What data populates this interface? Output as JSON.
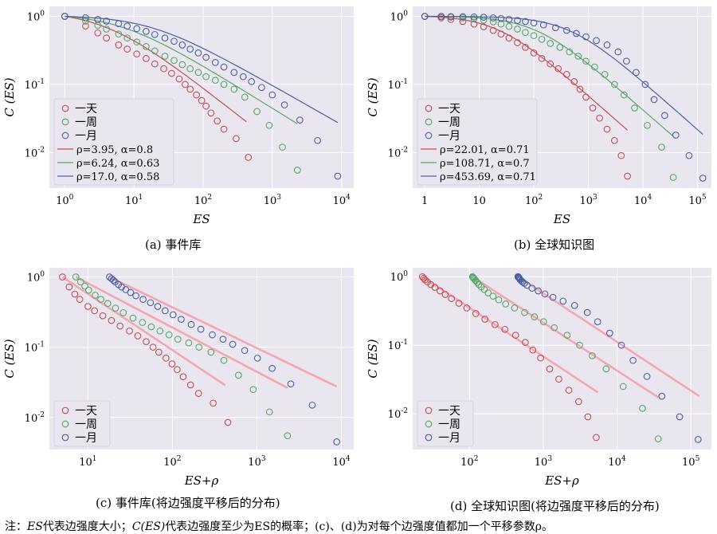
{
  "note": {
    "p1": "注：",
    "p2": "ES",
    "p3": "代表边强度大小；",
    "p4": "C(ES)",
    "p5": "代表边强度至少为ES的概率；(c)、(d)为对每个边强度值都加一个平移参数ρ。"
  },
  "colors": {
    "day": "#c44e52",
    "week": "#55a868",
    "month": "#4c5fa0",
    "shift_fit": "#f4a7b0",
    "panel_bg": "#eae6f0",
    "grid": "#ffffff"
  },
  "chart_data": [
    {
      "type": "scatter",
      "caption": "(a) 事件库",
      "xlabel": "ES",
      "ylabel": "C (ES)",
      "xscale": "log",
      "yscale": "log",
      "xlim": [
        0.6,
        15000
      ],
      "ylim": [
        0.003,
        1.4
      ],
      "x_ticks": [
        {
          "v": 1,
          "label": "10",
          "exp": "0"
        },
        {
          "v": 10,
          "label": "10",
          "exp": "1"
        },
        {
          "v": 100,
          "label": "10",
          "exp": "2"
        },
        {
          "v": 1000,
          "label": "10",
          "exp": "3"
        },
        {
          "v": 10000,
          "label": "10",
          "exp": "4"
        }
      ],
      "y_ticks": [
        {
          "v": 1,
          "label": "10",
          "exp": "0"
        },
        {
          "v": 0.1,
          "label": "10",
          "exp": "-1"
        },
        {
          "v": 0.01,
          "label": "10",
          "exp": "-2"
        }
      ],
      "grid": true,
      "legend_position": "bottom-left",
      "series": [
        {
          "name": "一天",
          "color_key": "day",
          "x": [
            1,
            2,
            3,
            4,
            6,
            8,
            11,
            15,
            20,
            27,
            35,
            45,
            55,
            65,
            80,
            95,
            110,
            130,
            160,
            200,
            300,
            450
          ],
          "y": [
            1.0,
            0.72,
            0.57,
            0.48,
            0.38,
            0.33,
            0.28,
            0.24,
            0.2,
            0.17,
            0.145,
            0.12,
            0.1,
            0.085,
            0.07,
            0.058,
            0.048,
            0.038,
            0.029,
            0.022,
            0.016,
            0.0085
          ]
        },
        {
          "name": "一周",
          "color_key": "week",
          "x": [
            1,
            2,
            3,
            4,
            6,
            8,
            11,
            15,
            20,
            28,
            38,
            50,
            65,
            85,
            110,
            150,
            200,
            280,
            400,
            600,
            900,
            1400,
            2300
          ],
          "y": [
            1.0,
            0.85,
            0.74,
            0.65,
            0.55,
            0.48,
            0.42,
            0.36,
            0.31,
            0.26,
            0.225,
            0.195,
            0.17,
            0.15,
            0.13,
            0.115,
            0.1,
            0.085,
            0.065,
            0.04,
            0.025,
            0.012,
            0.0055
          ]
        },
        {
          "name": "一月",
          "color_key": "month",
          "x": [
            1,
            2,
            3,
            4,
            6,
            8,
            11,
            15,
            20,
            28,
            38,
            50,
            65,
            85,
            110,
            150,
            200,
            280,
            380,
            500,
            700,
            1000,
            1500,
            2500,
            4500,
            8800
          ],
          "y": [
            1.0,
            0.95,
            0.9,
            0.85,
            0.78,
            0.72,
            0.66,
            0.6,
            0.54,
            0.48,
            0.43,
            0.38,
            0.33,
            0.29,
            0.25,
            0.21,
            0.18,
            0.15,
            0.13,
            0.11,
            0.09,
            0.07,
            0.05,
            0.03,
            0.015,
            0.0045
          ]
        }
      ],
      "fits": [
        {
          "label": "ρ=3.95, α=0.8",
          "color_key": "day",
          "rho": 3.95,
          "alpha": 0.8,
          "x_range": [
            1,
            420
          ]
        },
        {
          "label": "ρ=6.24, α=0.63",
          "color_key": "week",
          "rho": 6.24,
          "alpha": 0.63,
          "x_range": [
            1,
            2300
          ]
        },
        {
          "label": "ρ=17.0, α=0.58",
          "color_key": "month",
          "rho": 17.0,
          "alpha": 0.58,
          "x_range": [
            1,
            8800
          ]
        }
      ]
    },
    {
      "type": "scatter",
      "caption": "(b) 全球知识图",
      "xlabel": "ES",
      "ylabel": "C (ES)",
      "xscale": "log",
      "yscale": "log",
      "xlim": [
        0.6,
        180000
      ],
      "ylim": [
        0.003,
        1.4
      ],
      "x_ticks": [
        {
          "v": 1,
          "label": "1",
          "exp": ""
        },
        {
          "v": 10,
          "label": "10",
          "exp": ""
        },
        {
          "v": 100,
          "label": "10",
          "exp": "2"
        },
        {
          "v": 1000,
          "label": "10",
          "exp": "3"
        },
        {
          "v": 10000,
          "label": "10",
          "exp": "4"
        },
        {
          "v": 100000,
          "label": "10",
          "exp": "5"
        }
      ],
      "y_ticks": [
        {
          "v": 1,
          "label": "10",
          "exp": "0"
        },
        {
          "v": 0.1,
          "label": "10",
          "exp": "-1"
        },
        {
          "v": 0.01,
          "label": "10",
          "exp": "-2"
        }
      ],
      "grid": true,
      "legend_position": "bottom-left",
      "series": [
        {
          "name": "一天",
          "color_key": "day",
          "x": [
            1,
            2,
            3,
            5,
            8,
            12,
            18,
            25,
            35,
            50,
            70,
            100,
            140,
            200,
            280,
            400,
            550,
            700,
            900,
            1200,
            1600,
            2200,
            3000,
            4000,
            5200
          ],
          "y": [
            1.0,
            0.95,
            0.9,
            0.84,
            0.77,
            0.7,
            0.62,
            0.55,
            0.48,
            0.41,
            0.35,
            0.29,
            0.24,
            0.2,
            0.17,
            0.14,
            0.11,
            0.085,
            0.065,
            0.045,
            0.032,
            0.022,
            0.015,
            0.009,
            0.0045
          ]
        },
        {
          "name": "一周",
          "color_key": "week",
          "x": [
            1,
            2,
            3,
            5,
            8,
            12,
            18,
            25,
            35,
            50,
            70,
            100,
            140,
            200,
            300,
            450,
            650,
            900,
            1300,
            2000,
            3000,
            4500,
            7000,
            12000,
            22000,
            36000
          ],
          "y": [
            1.0,
            0.99,
            0.97,
            0.95,
            0.92,
            0.88,
            0.83,
            0.77,
            0.71,
            0.65,
            0.58,
            0.52,
            0.46,
            0.4,
            0.35,
            0.3,
            0.26,
            0.22,
            0.18,
            0.14,
            0.1,
            0.07,
            0.045,
            0.025,
            0.012,
            0.0043
          ]
        },
        {
          "name": "一月",
          "color_key": "month",
          "x": [
            1,
            2,
            3,
            5,
            8,
            12,
            18,
            25,
            35,
            50,
            70,
            100,
            150,
            250,
            400,
            600,
            900,
            1400,
            2200,
            3500,
            5000,
            7500,
            11000,
            16000,
            25000,
            40000,
            70000,
            125000
          ],
          "y": [
            1.0,
            1.0,
            0.99,
            0.99,
            0.98,
            0.97,
            0.95,
            0.93,
            0.9,
            0.87,
            0.84,
            0.8,
            0.75,
            0.68,
            0.62,
            0.56,
            0.5,
            0.44,
            0.38,
            0.3,
            0.22,
            0.15,
            0.1,
            0.06,
            0.035,
            0.018,
            0.009,
            0.0042
          ]
        }
      ],
      "fits": [
        {
          "label": "ρ=22.01, α=0.71",
          "color_key": "day",
          "rho": 22.01,
          "alpha": 0.71,
          "x_range": [
            1,
            5200
          ]
        },
        {
          "label": "ρ=108.71, α=0.7",
          "color_key": "week",
          "rho": 108.71,
          "alpha": 0.7,
          "x_range": [
            1,
            36000
          ]
        },
        {
          "label": "ρ=453.69, α=0.71",
          "color_key": "month",
          "rho": 453.69,
          "alpha": 0.71,
          "x_range": [
            1,
            125000
          ]
        }
      ]
    },
    {
      "type": "scatter",
      "caption": "(c) 事件库(将边强度平移后的分布)",
      "xlabel": "ES+ρ",
      "ylabel": "C (ES)",
      "xscale": "log",
      "yscale": "log",
      "xlim": [
        3.5,
        14000
      ],
      "ylim": [
        0.0035,
        1.35
      ],
      "x_ticks": [
        {
          "v": 10,
          "label": "10",
          "exp": "1"
        },
        {
          "v": 100,
          "label": "10",
          "exp": "2"
        },
        {
          "v": 1000,
          "label": "10",
          "exp": "3"
        },
        {
          "v": 10000,
          "label": "10",
          "exp": "4"
        }
      ],
      "y_ticks": [
        {
          "v": 1,
          "label": "10",
          "exp": "0"
        },
        {
          "v": 0.1,
          "label": "10",
          "exp": "-1"
        },
        {
          "v": 0.01,
          "label": "10",
          "exp": "-2"
        }
      ],
      "grid": true,
      "legend_position": "bottom-left",
      "series": [
        {
          "name": "一天",
          "color_key": "day",
          "x": [
            5,
            6,
            7,
            8,
            10,
            12,
            15,
            19,
            24,
            31,
            39,
            49,
            59,
            69,
            84,
            99,
            114,
            134,
            164,
            204,
            304,
            454
          ],
          "y": [
            1.0,
            0.72,
            0.57,
            0.48,
            0.38,
            0.33,
            0.28,
            0.24,
            0.2,
            0.17,
            0.145,
            0.12,
            0.1,
            0.085,
            0.07,
            0.058,
            0.048,
            0.038,
            0.029,
            0.022,
            0.016,
            0.0085
          ]
        },
        {
          "name": "一周",
          "color_key": "week",
          "x": [
            7.2,
            8.2,
            9.2,
            10.2,
            12.2,
            14.2,
            17.2,
            21.2,
            26.2,
            34.2,
            44.2,
            56.2,
            71.2,
            91.2,
            116.2,
            156.2,
            206.2,
            286.2,
            406.2,
            606.2,
            906.2,
            1406.2,
            2306.2
          ],
          "y": [
            1.0,
            0.85,
            0.74,
            0.65,
            0.55,
            0.48,
            0.42,
            0.36,
            0.31,
            0.26,
            0.225,
            0.195,
            0.17,
            0.15,
            0.13,
            0.115,
            0.1,
            0.085,
            0.065,
            0.04,
            0.025,
            0.012,
            0.0055
          ]
        },
        {
          "name": "一月",
          "color_key": "month",
          "x": [
            18,
            19,
            20,
            21,
            23,
            25,
            28,
            32,
            37,
            45,
            55,
            67,
            82,
            102,
            127,
            167,
            217,
            297,
            397,
            517,
            717,
            1017,
            1517,
            2517,
            4517,
            8817
          ],
          "y": [
            1.0,
            0.95,
            0.9,
            0.85,
            0.78,
            0.72,
            0.66,
            0.6,
            0.54,
            0.48,
            0.43,
            0.38,
            0.33,
            0.29,
            0.25,
            0.21,
            0.18,
            0.15,
            0.13,
            0.11,
            0.09,
            0.07,
            0.05,
            0.03,
            0.015,
            0.0045
          ]
        }
      ],
      "fits": [
        {
          "label": "",
          "color_key": "shift_fit",
          "rho": 0,
          "alpha": 0.8,
          "x0": 5,
          "x_range": [
            5,
            420
          ]
        },
        {
          "label": "",
          "color_key": "shift_fit",
          "rho": 0,
          "alpha": 0.63,
          "x0": 7.2,
          "x_range": [
            7.2,
            2300
          ]
        },
        {
          "label": "",
          "color_key": "shift_fit",
          "rho": 0,
          "alpha": 0.58,
          "x0": 18,
          "x_range": [
            18,
            8800
          ]
        }
      ]
    },
    {
      "type": "scatter",
      "caption": "(d) 全球知识图(将边强度平移后的分布)",
      "xlabel": "ES+ρ",
      "ylabel": "C (ES)",
      "xscale": "log",
      "yscale": "log",
      "xlim": [
        17,
        190000
      ],
      "ylim": [
        0.003,
        1.35
      ],
      "x_ticks": [
        {
          "v": 100,
          "label": "10",
          "exp": "2"
        },
        {
          "v": 1000,
          "label": "10",
          "exp": "3"
        },
        {
          "v": 10000,
          "label": "10",
          "exp": "4"
        },
        {
          "v": 100000,
          "label": "10",
          "exp": "5"
        }
      ],
      "y_ticks": [
        {
          "v": 1,
          "label": "10",
          "exp": "0"
        },
        {
          "v": 0.1,
          "label": "10",
          "exp": "-1"
        },
        {
          "v": 0.01,
          "label": "10",
          "exp": "-2"
        }
      ],
      "grid": true,
      "legend_position": "bottom-left",
      "series": [
        {
          "name": "一天",
          "color_key": "day",
          "x": [
            23,
            24,
            25,
            27,
            30,
            34,
            40,
            47,
            57,
            72,
            92,
            122,
            162,
            222,
            302,
            422,
            572,
            722,
            922,
            1222,
            1622,
            2222,
            3022,
            4022,
            5222
          ],
          "y": [
            1.0,
            0.95,
            0.9,
            0.84,
            0.77,
            0.7,
            0.62,
            0.55,
            0.48,
            0.41,
            0.35,
            0.29,
            0.24,
            0.2,
            0.17,
            0.14,
            0.11,
            0.085,
            0.065,
            0.045,
            0.032,
            0.022,
            0.015,
            0.009,
            0.0045
          ]
        },
        {
          "name": "一周",
          "color_key": "week",
          "x": [
            110,
            111,
            112,
            114,
            117,
            121,
            127,
            134,
            144,
            159,
            179,
            209,
            249,
            309,
            409,
            559,
            759,
            1009,
            1409,
            2109,
            3109,
            4609,
            7109,
            12109,
            22109,
            36109
          ],
          "y": [
            1.0,
            0.99,
            0.97,
            0.95,
            0.92,
            0.88,
            0.83,
            0.77,
            0.71,
            0.65,
            0.58,
            0.52,
            0.46,
            0.4,
            0.35,
            0.3,
            0.26,
            0.22,
            0.18,
            0.14,
            0.1,
            0.07,
            0.045,
            0.025,
            0.012,
            0.0043
          ]
        },
        {
          "name": "一月",
          "color_key": "month",
          "x": [
            455,
            456,
            457,
            459,
            462,
            466,
            472,
            479,
            489,
            504,
            524,
            554,
            604,
            704,
            854,
            1054,
            1354,
            1854,
            2654,
            3954,
            5454,
            7954,
            11454,
            16454,
            25454,
            40454,
            70454,
            125454
          ],
          "y": [
            1.0,
            1.0,
            0.99,
            0.99,
            0.98,
            0.97,
            0.95,
            0.93,
            0.9,
            0.87,
            0.84,
            0.8,
            0.75,
            0.68,
            0.62,
            0.56,
            0.5,
            0.44,
            0.38,
            0.3,
            0.22,
            0.15,
            0.1,
            0.06,
            0.035,
            0.018,
            0.009,
            0.0042
          ]
        }
      ],
      "fits": [
        {
          "label": "",
          "color_key": "shift_fit",
          "rho": 0,
          "alpha": 0.71,
          "x0": 23,
          "x_range": [
            23,
            5500
          ]
        },
        {
          "label": "",
          "color_key": "shift_fit",
          "rho": 0,
          "alpha": 0.7,
          "x0": 110,
          "x_range": [
            110,
            36000
          ]
        },
        {
          "label": "",
          "color_key": "shift_fit",
          "rho": 0,
          "alpha": 0.71,
          "x0": 455,
          "x_range": [
            455,
            130000
          ]
        }
      ]
    }
  ]
}
